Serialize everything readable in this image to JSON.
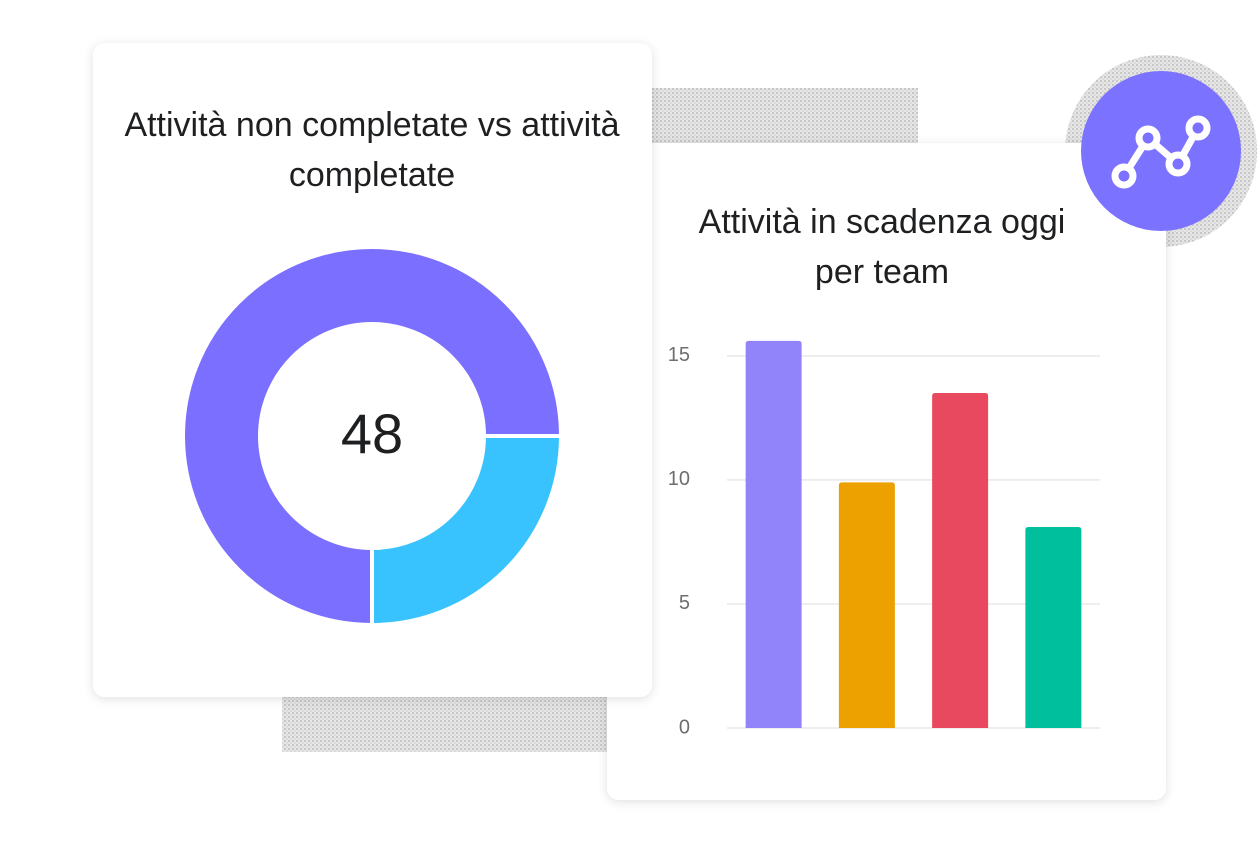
{
  "chart_data": [
    {
      "type": "pie",
      "title": "Attività non completate vs attività completate",
      "values": [
        75,
        25
      ],
      "colors": [
        "#7b6fff",
        "#38c3ff"
      ],
      "center_label": 48
    },
    {
      "type": "bar",
      "title": "Attività in scadenza oggi per team",
      "categories": [
        null,
        null,
        null,
        null
      ],
      "values": [
        15.6,
        9.9,
        13.5,
        8.1
      ],
      "colors": [
        "#9184fb",
        "#eda100",
        "#e8495e",
        "#00bf9c"
      ],
      "ylim": [
        0,
        16
      ],
      "yticks": [
        0,
        5,
        10,
        15
      ],
      "grid": true
    }
  ]
}
